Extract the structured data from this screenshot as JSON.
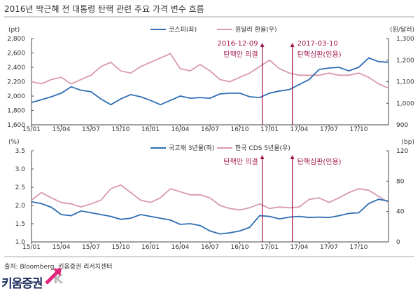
{
  "title": "2016년 박근혜 전 대통령 탄핵 관련 주요 가격 변수 흐름",
  "source": "출처: Bloomberg, 키움증권 리서치센터",
  "logo_text": "키움증권",
  "colors": {
    "blue": "#2e6db4",
    "pink": "#d99aae",
    "annotation": "#a0164e"
  },
  "chart_data": [
    {
      "type": "line",
      "y_left_unit": "(pt)",
      "y_right_unit": "(원/달러)",
      "ylim_left": [
        1600,
        2800
      ],
      "ylim_right": [
        900,
        1300
      ],
      "yticks_left": [
        "1,600",
        "1,800",
        "2,000",
        "2,200",
        "2,400",
        "2,600",
        "2,800"
      ],
      "yticks_right": [
        "900",
        "1,000",
        "1,100",
        "1,200",
        "1,300"
      ],
      "xticks": [
        "15/01",
        "15/04",
        "15/07",
        "15/10",
        "16/01",
        "16/04",
        "16/07",
        "16/10",
        "17/01",
        "17/04",
        "17/07",
        "17/10"
      ],
      "x": [
        "15/01",
        "15/02",
        "15/03",
        "15/04",
        "15/05",
        "15/06",
        "15/07",
        "15/08",
        "15/09",
        "15/10",
        "15/11",
        "15/12",
        "16/01",
        "16/02",
        "16/03",
        "16/04",
        "16/05",
        "16/06",
        "16/07",
        "16/08",
        "16/09",
        "16/10",
        "16/11",
        "16/12",
        "17/01",
        "17/02",
        "17/03",
        "17/04",
        "17/05",
        "17/06",
        "17/07",
        "17/08",
        "17/09",
        "17/10",
        "17/11",
        "17/12",
        "18/01"
      ],
      "legend_position": "top-center",
      "series": [
        {
          "name": "코스피(좌)",
          "axis": "left",
          "color": "#2e6db4",
          "values": [
            1910,
            1950,
            1990,
            2040,
            2130,
            2080,
            2060,
            1960,
            1880,
            1960,
            2020,
            1990,
            1940,
            1880,
            1940,
            2000,
            1970,
            1980,
            1970,
            2030,
            2040,
            2040,
            1990,
            1980,
            2040,
            2070,
            2090,
            2160,
            2230,
            2370,
            2390,
            2400,
            2350,
            2400,
            2530,
            2480,
            2470
          ]
        },
        {
          "name": "원달러 환율(우)",
          "axis": "right",
          "color": "#d99aae",
          "values": [
            1100,
            1090,
            1110,
            1120,
            1090,
            1110,
            1130,
            1170,
            1190,
            1150,
            1140,
            1170,
            1190,
            1210,
            1230,
            1160,
            1150,
            1180,
            1150,
            1110,
            1100,
            1120,
            1140,
            1170,
            1200,
            1160,
            1140,
            1130,
            1130,
            1130,
            1140,
            1130,
            1130,
            1140,
            1120,
            1090,
            1070
          ]
        }
      ],
      "annotations": [
        {
          "date": "2016-12-09",
          "label_date": "2016-12-09",
          "label": "탄핵안 의결"
        },
        {
          "date": "2017-03-10",
          "label_date": "2017-03-10",
          "label": "탄핵심판(인용)"
        }
      ]
    },
    {
      "type": "line",
      "y_left_unit": "(%)",
      "y_right_unit": "(bp)",
      "ylim_left": [
        1.0,
        3.5
      ],
      "ylim_right": [
        0,
        120
      ],
      "yticks_left": [
        "1.0",
        "1.5",
        "2.0",
        "2.5",
        "3.0",
        "3.5"
      ],
      "yticks_right": [
        "0",
        "40",
        "80",
        "120"
      ],
      "xticks": [
        "15/01",
        "15/04",
        "15/07",
        "15/10",
        "16/01",
        "16/04",
        "16/07",
        "16/10",
        "17/01",
        "17/04",
        "17/07",
        "17/10"
      ],
      "x": [
        "15/01",
        "15/02",
        "15/03",
        "15/04",
        "15/05",
        "15/06",
        "15/07",
        "15/08",
        "15/09",
        "15/10",
        "15/11",
        "15/12",
        "16/01",
        "16/02",
        "16/03",
        "16/04",
        "16/05",
        "16/06",
        "16/07",
        "16/08",
        "16/09",
        "16/10",
        "16/11",
        "16/12",
        "17/01",
        "17/02",
        "17/03",
        "17/04",
        "17/05",
        "17/06",
        "17/07",
        "17/08",
        "17/09",
        "17/10",
        "17/11",
        "17/12",
        "18/01"
      ],
      "legend_position": "top-center",
      "series": [
        {
          "name": "국고채 3년물(좌)",
          "axis": "left",
          "color": "#2e6db4",
          "values": [
            2.1,
            2.05,
            1.95,
            1.75,
            1.72,
            1.85,
            1.8,
            1.75,
            1.7,
            1.62,
            1.65,
            1.75,
            1.7,
            1.65,
            1.6,
            1.48,
            1.5,
            1.45,
            1.3,
            1.22,
            1.25,
            1.3,
            1.4,
            1.72,
            1.7,
            1.63,
            1.68,
            1.7,
            1.67,
            1.68,
            1.67,
            1.72,
            1.78,
            1.8,
            2.05,
            2.17,
            2.12
          ]
        },
        {
          "name": "한국 CDS 5년물(우)",
          "axis": "right",
          "color": "#d99aae",
          "values": [
            55,
            65,
            58,
            52,
            50,
            46,
            50,
            55,
            70,
            75,
            65,
            55,
            52,
            58,
            70,
            66,
            62,
            62,
            58,
            48,
            44,
            42,
            45,
            50,
            44,
            46,
            45,
            46,
            56,
            58,
            52,
            58,
            65,
            70,
            68,
            60,
            52
          ]
        }
      ],
      "annotations": [
        {
          "date": "2016-12-09",
          "label": "탄핵안 의결"
        },
        {
          "date": "2017-03-10",
          "label": "탄핵심판(인용)"
        }
      ]
    }
  ]
}
